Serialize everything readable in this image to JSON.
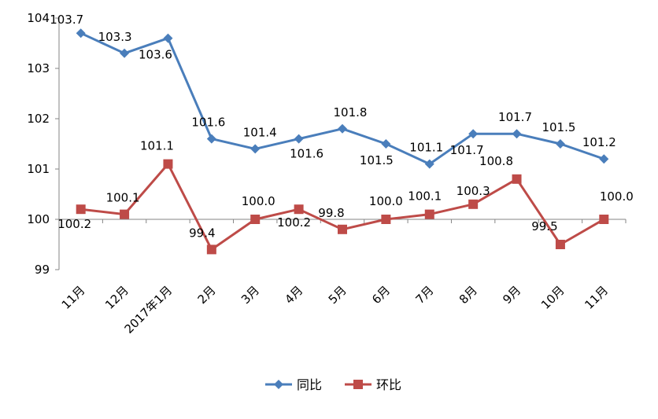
{
  "chart_data": {
    "type": "line",
    "title": "",
    "xlabel": "",
    "ylabel": "",
    "categories": [
      "11月",
      "12月",
      "2017年1月",
      "2月",
      "3月",
      "4月",
      "5月",
      "6月",
      "7月",
      "8月",
      "9月",
      "10月",
      "11月"
    ],
    "ylim": [
      99,
      104
    ],
    "yticks": [
      "99",
      "100",
      "101",
      "102",
      "103",
      "104"
    ],
    "grid": false,
    "legend_position": "bottom",
    "series": [
      {
        "name": "同比",
        "color": "#4A7EBB",
        "marker": "diamond",
        "values": [
          103.7,
          103.3,
          103.6,
          101.6,
          101.4,
          101.6,
          101.8,
          101.5,
          101.1,
          101.7,
          101.7,
          101.5,
          101.2
        ],
        "labels": [
          "103.7",
          "103.3",
          "103.6",
          "101.6",
          "101.4",
          "101.6",
          "101.8",
          "101.5",
          "101.1",
          "101.7",
          "101.7",
          "101.5",
          "101.2"
        ]
      },
      {
        "name": "环比",
        "color": "#BE4B48",
        "marker": "square",
        "values": [
          100.2,
          100.1,
          101.1,
          99.4,
          100.0,
          100.2,
          99.8,
          100.0,
          100.1,
          100.3,
          100.8,
          99.5,
          100.0
        ],
        "labels": [
          "100.2",
          "100.1",
          "101.1",
          "99.4",
          "100.0",
          "100.2",
          "99.8",
          "100.0",
          "100.1",
          "100.3",
          "100.8",
          "99.5",
          "100.0"
        ]
      }
    ]
  }
}
